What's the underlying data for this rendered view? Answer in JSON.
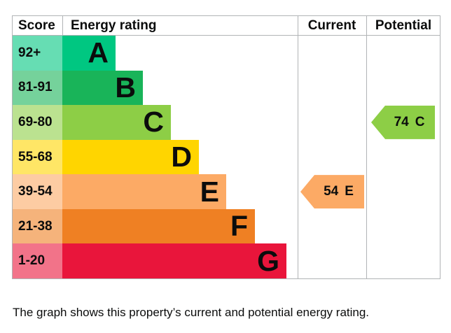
{
  "header": {
    "score": "Score",
    "energy_rating": "Energy rating",
    "current": "Current",
    "potential": "Potential"
  },
  "bands": [
    {
      "letter": "A",
      "score_range": "92+",
      "color": "#00c781"
    },
    {
      "letter": "B",
      "score_range": "81-91",
      "color": "#19b459"
    },
    {
      "letter": "C",
      "score_range": "69-80",
      "color": "#8dce46"
    },
    {
      "letter": "D",
      "score_range": "55-68",
      "color": "#ffd500"
    },
    {
      "letter": "E",
      "score_range": "39-54",
      "color": "#fcaa65"
    },
    {
      "letter": "F",
      "score_range": "21-38",
      "color": "#ef8023"
    },
    {
      "letter": "G",
      "score_range": "1-20",
      "color": "#e9153b"
    }
  ],
  "current": {
    "value": "54",
    "letter": "E",
    "band_index": 4,
    "color": "#fcaa65"
  },
  "potential": {
    "value": "74",
    "letter": "C",
    "band_index": 2,
    "color": "#8dce46"
  },
  "caption": "The graph shows this property’s current and potential energy rating.",
  "colors": {
    "border": "#b1b4b6",
    "text": "#0b0c0c",
    "background": "#ffffff"
  },
  "chart_data": {
    "type": "bar",
    "title": "Energy rating",
    "orientation": "horizontal",
    "categories": [
      "A",
      "B",
      "C",
      "D",
      "E",
      "F",
      "G"
    ],
    "score_ranges": [
      "92+",
      "81-91",
      "69-80",
      "55-68",
      "39-54",
      "21-38",
      "1-20"
    ],
    "band_colors": [
      "#00c781",
      "#19b459",
      "#8dce46",
      "#ffd500",
      "#fcaa65",
      "#ef8023",
      "#e9153b"
    ],
    "columns": [
      "Score",
      "Energy rating",
      "Current",
      "Potential"
    ],
    "current_rating": {
      "score": 54,
      "band": "E"
    },
    "potential_rating": {
      "score": 74,
      "band": "C"
    },
    "legend_position": "none",
    "grid": false
  }
}
